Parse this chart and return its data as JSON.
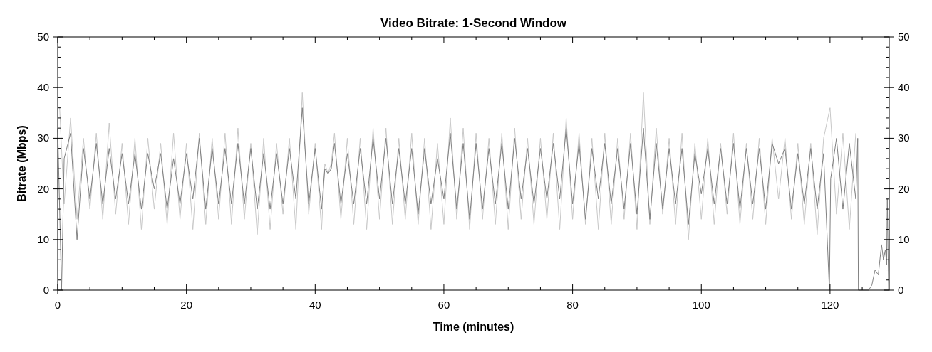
{
  "chart_data": {
    "type": "line",
    "title": "Video Bitrate: 1-Second Window",
    "xlabel": "Time (minutes)",
    "ylabel": "Bitrate (Mbps)",
    "xlim": [
      0,
      129.2
    ],
    "xticks": [
      0,
      {
        "value": 5,
        "label": null
      },
      {
        "value": 10,
        "label": null
      },
      {
        "value": 15,
        "label": null
      },
      20,
      {
        "value": 25,
        "label": null
      },
      {
        "value": 30,
        "label": null
      },
      {
        "value": 35,
        "label": null
      },
      40,
      {
        "value": 45,
        "label": null
      },
      {
        "value": 50,
        "label": null
      },
      {
        "value": 55,
        "label": null
      },
      60,
      {
        "value": 65,
        "label": null
      },
      {
        "value": 70,
        "label": null
      },
      {
        "value": 75,
        "label": null
      },
      80,
      {
        "value": 85,
        "label": null
      },
      {
        "value": 90,
        "label": null
      },
      {
        "value": 95,
        "label": null
      },
      100,
      {
        "value": 105,
        "label": null
      },
      {
        "value": 110,
        "label": null
      },
      {
        "value": 115,
        "label": null
      },
      120,
      {
        "value": 125,
        "label": null
      }
    ],
    "ylim": [
      0,
      50
    ],
    "yticks": [
      0,
      {
        "value": 2,
        "label": null
      },
      {
        "value": 4,
        "label": null
      },
      {
        "value": 6,
        "label": null
      },
      {
        "value": 8,
        "label": null
      },
      10,
      {
        "value": 12,
        "label": null
      },
      {
        "value": 14,
        "label": null
      },
      {
        "value": 16,
        "label": null
      },
      {
        "value": 18,
        "label": null
      },
      20,
      {
        "value": 22,
        "label": null
      },
      {
        "value": 24,
        "label": null
      },
      {
        "value": 26,
        "label": null
      },
      {
        "value": 28,
        "label": null
      },
      30,
      {
        "value": 32,
        "label": null
      },
      {
        "value": 34,
        "label": null
      },
      {
        "value": 36,
        "label": null
      },
      {
        "value": 38,
        "label": null
      },
      40,
      {
        "value": 42,
        "label": null
      },
      {
        "value": 44,
        "label": null
      },
      {
        "value": 46,
        "label": null
      },
      {
        "value": 48,
        "label": null
      },
      50
    ],
    "y2lim": [
      0,
      50
    ],
    "y2ticks": [
      0,
      {
        "value": 2,
        "label": null
      },
      {
        "value": 4,
        "label": null
      },
      {
        "value": 6,
        "label": null
      },
      {
        "value": 8,
        "label": null
      },
      10,
      {
        "value": 12,
        "label": null
      },
      {
        "value": 14,
        "label": null
      },
      {
        "value": 16,
        "label": null
      },
      {
        "value": 18,
        "label": null
      },
      20,
      {
        "value": 22,
        "label": null
      },
      {
        "value": 24,
        "label": null
      },
      {
        "value": 26,
        "label": null
      },
      {
        "value": 28,
        "label": null
      },
      30,
      {
        "value": 32,
        "label": null
      },
      {
        "value": 34,
        "label": null
      },
      {
        "value": 36,
        "label": null
      },
      {
        "value": 38,
        "label": null
      },
      40,
      {
        "value": 42,
        "label": null
      },
      {
        "value": 44,
        "label": null
      },
      {
        "value": 46,
        "label": null
      },
      {
        "value": 48,
        "label": null
      },
      50
    ],
    "grid": false,
    "series": [
      {
        "color": "#c8c8c8",
        "x": [
          0.3,
          1,
          2,
          3,
          4,
          5,
          6,
          7,
          8,
          9,
          10,
          11,
          12,
          13,
          14,
          15,
          16,
          17,
          18,
          19,
          20,
          21,
          22,
          23,
          24,
          25,
          26,
          27,
          28,
          29,
          30,
          31,
          32,
          33,
          34,
          35,
          36,
          37,
          38,
          39,
          40,
          41,
          41.5,
          42,
          42.5,
          43,
          44,
          45,
          46,
          47,
          48,
          49,
          50,
          51,
          52,
          53,
          54,
          55,
          56,
          57,
          58,
          59,
          60,
          61,
          62,
          63,
          64,
          65,
          66,
          67,
          68,
          69,
          70,
          71,
          72,
          73,
          74,
          75,
          76,
          77,
          78,
          79,
          80,
          81,
          82,
          83,
          84,
          85,
          86,
          87,
          88,
          89,
          90,
          91,
          92,
          93,
          94,
          95,
          96,
          97,
          98,
          99,
          100,
          101,
          102,
          103,
          104,
          105,
          106,
          107,
          108,
          109,
          110,
          111,
          112,
          113,
          114,
          115,
          116,
          117,
          118,
          119,
          120,
          121,
          122,
          123,
          124
        ],
        "values": [
          36,
          17,
          34,
          14,
          30,
          16,
          31,
          14,
          33,
          15,
          29,
          13,
          30,
          12,
          30,
          16,
          29,
          13,
          31,
          14,
          29,
          12,
          31,
          13,
          30,
          14,
          31,
          13,
          32,
          14,
          29,
          11,
          30,
          12,
          29,
          15,
          30,
          12,
          39,
          15,
          29,
          12,
          25,
          23,
          25,
          31,
          14,
          30,
          13,
          30,
          12,
          32,
          14,
          32,
          13,
          30,
          14,
          31,
          13,
          30,
          12,
          29,
          13,
          34,
          14,
          32,
          12,
          31,
          14,
          30,
          13,
          31,
          12,
          32,
          14,
          30,
          13,
          30,
          14,
          31,
          12,
          34,
          14,
          31,
          13,
          30,
          12,
          31,
          13,
          30,
          14,
          31,
          12,
          39,
          13,
          32,
          15,
          30,
          13,
          31,
          10,
          29,
          14,
          30,
          13,
          29,
          15,
          31,
          13,
          29,
          14,
          30,
          13,
          30,
          18,
          30,
          14,
          29,
          13,
          29,
          11,
          30,
          36,
          15,
          31,
          12,
          31
        ]
      },
      {
        "color": "#808080",
        "x": [
          0,
          0.6,
          1,
          2,
          3,
          4,
          5,
          6,
          7,
          8,
          9,
          10,
          11,
          12,
          13,
          14,
          15,
          16,
          17,
          18,
          19,
          20,
          21,
          22,
          23,
          24,
          25,
          26,
          27,
          28,
          29,
          30,
          31,
          32,
          33,
          34,
          35,
          36,
          37,
          38,
          39,
          40,
          41,
          41.5,
          42,
          42.5,
          43,
          44,
          45,
          46,
          47,
          48,
          49,
          50,
          51,
          52,
          53,
          54,
          55,
          56,
          57,
          58,
          59,
          60,
          61,
          62,
          63,
          64,
          65,
          66,
          67,
          68,
          69,
          70,
          71,
          72,
          73,
          74,
          75,
          76,
          77,
          78,
          79,
          80,
          81,
          82,
          83,
          84,
          85,
          86,
          87,
          88,
          89,
          90,
          91,
          92,
          93,
          94,
          95,
          96,
          97,
          98,
          99,
          100,
          101,
          102,
          103,
          104,
          105,
          106,
          107,
          108,
          109,
          110,
          111,
          112,
          113,
          114,
          115,
          116,
          117,
          118,
          119,
          119.9,
          120.1,
          121,
          122,
          123,
          124,
          124.3,
          124.4,
          126,
          126.5,
          127,
          127.5,
          128,
          128.3,
          128.6,
          128.8,
          128.9,
          129.1
        ],
        "values": [
          32,
          0,
          26,
          31,
          10,
          28,
          18,
          29,
          17,
          28,
          18,
          27,
          17,
          27,
          16,
          27,
          20,
          27,
          16,
          26,
          17,
          27,
          18,
          30,
          16,
          28,
          17,
          28,
          17,
          29,
          17,
          28,
          16,
          27,
          16,
          27,
          17,
          28,
          18,
          36,
          17,
          28,
          16,
          24,
          23,
          24,
          29,
          17,
          27,
          17,
          28,
          17,
          30,
          18,
          30,
          17,
          28,
          17,
          28,
          15,
          28,
          17,
          26,
          18,
          31,
          16,
          29,
          14,
          29,
          16,
          28,
          17,
          29,
          16,
          30,
          18,
          28,
          17,
          28,
          18,
          29,
          18,
          32,
          17,
          29,
          14,
          28,
          18,
          29,
          17,
          28,
          16,
          29,
          15,
          32,
          14,
          29,
          16,
          28,
          17,
          28,
          13,
          27,
          19,
          28,
          17,
          28,
          17,
          29,
          16,
          28,
          17,
          28,
          16,
          29,
          25,
          28,
          16,
          27,
          17,
          28,
          16,
          27,
          0,
          22,
          30,
          16,
          29,
          18,
          30,
          0,
          0,
          1,
          4,
          3,
          9,
          6,
          8,
          5,
          18,
          0
        ]
      }
    ]
  }
}
